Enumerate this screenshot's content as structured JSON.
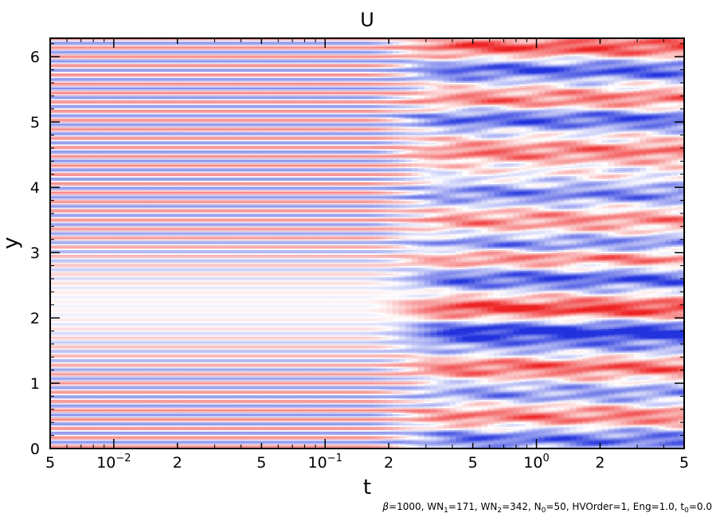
{
  "chart_data": {
    "type": "heatmap",
    "title": "U",
    "xlabel": "t",
    "ylabel": "y",
    "x_scale": "log",
    "xlim": [
      0.005,
      5
    ],
    "ylim": [
      0,
      6.283
    ],
    "grid": false,
    "legend": "none",
    "x_ticks": [
      {
        "value": 0.005,
        "label": "5"
      },
      {
        "value": 0.01,
        "label": "10",
        "exp": "−2"
      },
      {
        "value": 0.02,
        "label": "2"
      },
      {
        "value": 0.05,
        "label": "5"
      },
      {
        "value": 0.1,
        "label": "10",
        "exp": "−1"
      },
      {
        "value": 0.2,
        "label": "2"
      },
      {
        "value": 0.5,
        "label": "5"
      },
      {
        "value": 1,
        "label": "10",
        "exp": "0"
      },
      {
        "value": 2,
        "label": "2"
      },
      {
        "value": 5,
        "label": "5"
      }
    ],
    "y_ticks": [
      {
        "value": 0,
        "label": "0"
      },
      {
        "value": 1,
        "label": "1"
      },
      {
        "value": 2,
        "label": "2"
      },
      {
        "value": 3,
        "label": "3"
      },
      {
        "value": 4,
        "label": "4"
      },
      {
        "value": 5,
        "label": "5"
      },
      {
        "value": 6,
        "label": "6"
      }
    ],
    "colors": {
      "positive": "#ee2222",
      "zero": "#ffffff",
      "negative": "#2233dd"
    },
    "field": {
      "initial_stripes_per_unit_y": 7.2,
      "stripe_amplitude_near_y2": 0.1,
      "transition_t_range": [
        0.15,
        0.5
      ],
      "late_time_bands": [
        {
          "y": 0.15,
          "u": -0.7
        },
        {
          "y": 0.5,
          "u": 0.6
        },
        {
          "y": 0.85,
          "u": -0.5
        },
        {
          "y": 1.25,
          "u": 0.7
        },
        {
          "y": 1.55,
          "u": -0.4
        },
        {
          "y": 1.8,
          "u": -1.0
        },
        {
          "y": 2.15,
          "u": 0.9
        },
        {
          "y": 2.6,
          "u": -0.8
        },
        {
          "y": 2.95,
          "u": 0.8
        },
        {
          "y": 3.1,
          "u": -0.8
        },
        {
          "y": 3.5,
          "u": 0.5
        },
        {
          "y": 3.9,
          "u": -0.6
        },
        {
          "y": 4.55,
          "u": 0.6
        },
        {
          "y": 5.05,
          "u": -0.8
        },
        {
          "y": 5.35,
          "u": 0.6
        },
        {
          "y": 5.8,
          "u": -0.8
        },
        {
          "y": 6.15,
          "u": 0.8
        }
      ]
    },
    "parameters": {
      "beta": "1000",
      "WN1": "171",
      "WN2": "342",
      "N0": "50",
      "HVOrder": "1",
      "Eng": "1.0",
      "t0": "0.0"
    }
  }
}
